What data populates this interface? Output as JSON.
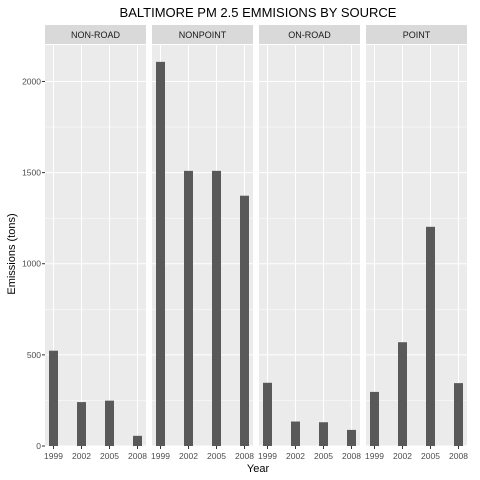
{
  "chart_data": {
    "type": "bar",
    "title": "BALTIMORE PM 2.5 EMMISIONS BY SOURCE",
    "xlabel": "Year",
    "ylabel": "Emissions (tons)",
    "categories": [
      "1999",
      "2002",
      "2005",
      "2008"
    ],
    "ylim": [
      0,
      2200
    ],
    "yticks": [
      0,
      500,
      1000,
      1500,
      2000
    ],
    "grid": true,
    "panels": [
      {
        "name": "NON-ROAD",
        "values": [
          522.9,
          240.8,
          248.9,
          55.8
        ]
      },
      {
        "name": "NONPOINT",
        "values": [
          2107.6,
          1509.5,
          1509.5,
          1373.2
        ]
      },
      {
        "name": "ON-ROAD",
        "values": [
          346.8,
          134.3,
          130.4,
          88.3
        ]
      },
      {
        "name": "POINT",
        "values": [
          296.8,
          569.3,
          1202.5,
          344.98
        ]
      }
    ],
    "colors": {
      "bar": "#595959",
      "panel_background": "#ebebeb",
      "grid": "#ffffff",
      "strip_background": "#d9d9d9"
    }
  }
}
